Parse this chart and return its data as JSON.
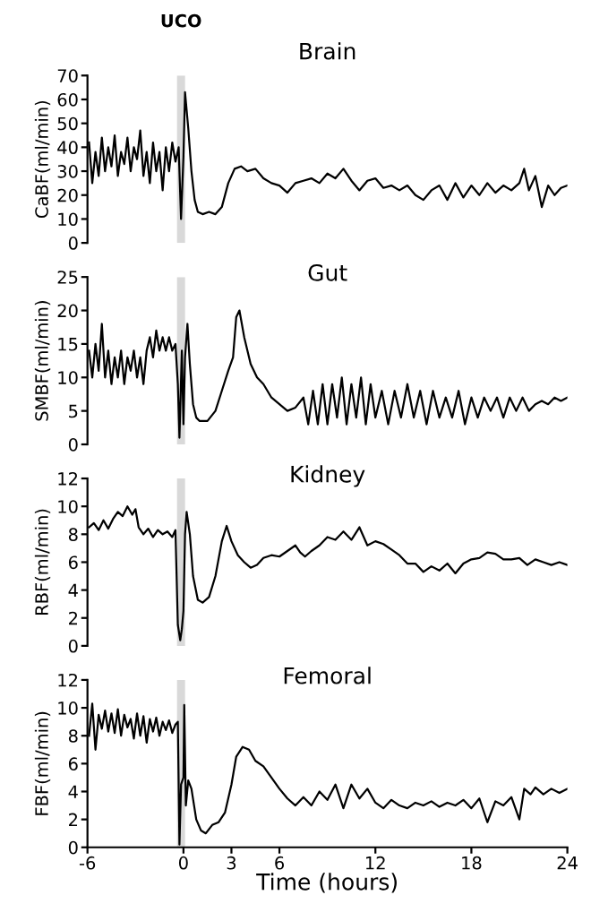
{
  "chart_data": [
    {
      "type": "line",
      "title": "Brain",
      "ylabel": "CaBF(ml/min)",
      "xlim": [
        -6,
        24
      ],
      "ylim": [
        0,
        70
      ],
      "yticks": [
        0,
        10,
        20,
        30,
        40,
        50,
        60,
        70
      ],
      "grid": false,
      "legend": false,
      "tick_labels": "y",
      "line_style": "solid",
      "bands": [
        {
          "axis": "x",
          "from": -0.4,
          "to": 0.1,
          "label": "UCO",
          "color": "#d9d9d9"
        }
      ],
      "series": [
        {
          "color": "#000000",
          "x": [
            -5.9,
            -5.7,
            -5.5,
            -5.3,
            -5.1,
            -4.9,
            -4.7,
            -4.5,
            -4.3,
            -4.1,
            -3.9,
            -3.7,
            -3.5,
            -3.3,
            -3.1,
            -2.9,
            -2.7,
            -2.5,
            -2.3,
            -2.1,
            -1.9,
            -1.7,
            -1.5,
            -1.3,
            -1.1,
            -0.9,
            -0.7,
            -0.5,
            -0.3,
            -0.15,
            0.0,
            0.1,
            0.3,
            0.5,
            0.7,
            0.9,
            1.2,
            1.6,
            2.0,
            2.4,
            2.8,
            3.2,
            3.6,
            4.0,
            4.5,
            5.0,
            5.5,
            6.0,
            6.5,
            7.0,
            7.5,
            8.0,
            8.5,
            9.0,
            9.5,
            10.0,
            10.5,
            11.0,
            11.5,
            12.0,
            12.5,
            13.0,
            13.5,
            14.0,
            14.5,
            15.0,
            15.5,
            16.0,
            16.5,
            17.0,
            17.5,
            18.0,
            18.5,
            19.0,
            19.5,
            20.0,
            20.5,
            21.0,
            21.3,
            21.6,
            22.0,
            22.4,
            22.8,
            23.2,
            23.6,
            24.0
          ],
          "values": [
            42,
            25,
            38,
            28,
            44,
            30,
            40,
            32,
            45,
            28,
            38,
            33,
            44,
            30,
            40,
            35,
            47,
            28,
            38,
            25,
            42,
            30,
            38,
            22,
            40,
            30,
            42,
            34,
            40,
            10,
            36,
            63,
            48,
            30,
            18,
            13,
            12,
            13,
            12,
            15,
            25,
            31,
            32,
            30,
            31,
            27,
            25,
            24,
            21,
            25,
            26,
            27,
            25,
            29,
            27,
            31,
            26,
            22,
            26,
            27,
            23,
            24,
            22,
            24,
            20,
            18,
            22,
            24,
            18,
            25,
            19,
            24,
            20,
            25,
            21,
            24,
            22,
            25,
            31,
            22,
            28,
            15,
            24,
            20,
            23,
            24
          ]
        }
      ]
    },
    {
      "type": "line",
      "title": "Gut",
      "ylabel": "SMBF(ml/min)",
      "xlim": [
        -6,
        24
      ],
      "ylim": [
        0,
        25
      ],
      "yticks": [
        0,
        5,
        10,
        15,
        20,
        25
      ],
      "grid": false,
      "legend": false,
      "tick_labels": "y",
      "line_style": "solid",
      "bands": [
        {
          "axis": "x",
          "from": -0.4,
          "to": 0.1,
          "color": "#d9d9d9"
        }
      ],
      "series": [
        {
          "color": "#000000",
          "x": [
            -5.9,
            -5.7,
            -5.5,
            -5.3,
            -5.1,
            -4.9,
            -4.7,
            -4.5,
            -4.3,
            -4.1,
            -3.9,
            -3.7,
            -3.5,
            -3.3,
            -3.1,
            -2.9,
            -2.7,
            -2.5,
            -2.3,
            -2.1,
            -1.9,
            -1.7,
            -1.5,
            -1.3,
            -1.1,
            -0.9,
            -0.7,
            -0.5,
            -0.35,
            -0.25,
            -0.1,
            0.0,
            0.1,
            0.25,
            0.4,
            0.6,
            0.8,
            1.0,
            1.5,
            2.0,
            2.4,
            2.8,
            3.1,
            3.3,
            3.5,
            3.8,
            4.2,
            4.6,
            5.0,
            5.5,
            6.0,
            6.5,
            7.0,
            7.5,
            7.8,
            8.1,
            8.4,
            8.7,
            9.0,
            9.3,
            9.6,
            9.9,
            10.2,
            10.5,
            10.8,
            11.1,
            11.4,
            11.7,
            12.0,
            12.4,
            12.8,
            13.2,
            13.6,
            14.0,
            14.4,
            14.8,
            15.2,
            15.6,
            16.0,
            16.4,
            16.8,
            17.2,
            17.6,
            18.0,
            18.4,
            18.8,
            19.2,
            19.6,
            20.0,
            20.4,
            20.8,
            21.2,
            21.6,
            22.0,
            22.4,
            22.8,
            23.2,
            23.6,
            24.0
          ],
          "values": [
            14,
            10,
            15,
            11,
            18,
            10,
            14,
            9,
            13,
            10,
            14,
            9,
            13,
            11,
            14,
            10,
            13,
            9,
            14,
            16,
            13,
            17,
            14,
            16,
            14,
            16,
            14,
            15,
            9,
            1,
            14,
            3,
            13,
            18,
            12,
            6,
            4,
            3.5,
            3.5,
            5,
            8,
            11,
            13,
            19,
            20,
            16,
            12,
            10,
            9,
            7,
            6,
            5,
            5.5,
            7,
            3,
            8,
            3,
            9,
            3,
            9,
            4,
            10,
            3,
            9,
            4,
            10,
            3,
            9,
            4,
            8,
            3,
            8,
            4,
            9,
            4,
            8,
            3,
            8,
            4,
            7,
            4,
            8,
            3,
            7,
            4,
            7,
            5,
            7,
            4,
            7,
            5,
            7,
            5,
            6,
            6.5,
            6,
            7,
            6.5,
            7
          ]
        }
      ]
    },
    {
      "type": "line",
      "title": "Kidney",
      "ylabel": "RBF(ml/min)",
      "xlim": [
        -6,
        24
      ],
      "ylim": [
        0,
        12
      ],
      "yticks": [
        0,
        2,
        4,
        6,
        8,
        10,
        12
      ],
      "grid": false,
      "legend": false,
      "tick_labels": "y",
      "line_style": "solid",
      "bands": [
        {
          "axis": "x",
          "from": -0.4,
          "to": 0.1,
          "color": "#d9d9d9"
        }
      ],
      "series": [
        {
          "color": "#000000",
          "x": [
            -5.9,
            -5.6,
            -5.3,
            -5.0,
            -4.7,
            -4.4,
            -4.1,
            -3.8,
            -3.5,
            -3.2,
            -3.0,
            -2.8,
            -2.5,
            -2.2,
            -1.9,
            -1.6,
            -1.3,
            -1.0,
            -0.7,
            -0.5,
            -0.35,
            -0.2,
            -0.1,
            0.0,
            0.1,
            0.2,
            0.4,
            0.6,
            0.9,
            1.2,
            1.6,
            2.0,
            2.4,
            2.7,
            3.0,
            3.4,
            3.8,
            4.2,
            4.6,
            5.0,
            5.5,
            6.0,
            6.5,
            7.0,
            7.3,
            7.6,
            8.0,
            8.5,
            9.0,
            9.5,
            10.0,
            10.5,
            11.0,
            11.5,
            12.0,
            12.5,
            13.0,
            13.5,
            14.0,
            14.5,
            15.0,
            15.5,
            16.0,
            16.5,
            17.0,
            17.5,
            18.0,
            18.5,
            19.0,
            19.5,
            20.0,
            20.5,
            21.0,
            21.5,
            22.0,
            22.5,
            23.0,
            23.5,
            24.0
          ],
          "values": [
            8.5,
            8.8,
            8.3,
            9.0,
            8.4,
            9.1,
            9.6,
            9.3,
            10.0,
            9.4,
            9.8,
            8.5,
            8.0,
            8.4,
            7.8,
            8.3,
            8.0,
            8.2,
            7.8,
            8.3,
            1.5,
            0.4,
            1.2,
            2.5,
            8,
            9.6,
            8,
            5,
            3.3,
            3.1,
            3.5,
            5,
            7.5,
            8.6,
            7.5,
            6.5,
            6,
            5.6,
            5.8,
            6.3,
            6.5,
            6.4,
            6.8,
            7.2,
            6.7,
            6.4,
            6.8,
            7.2,
            7.8,
            7.6,
            8.2,
            7.6,
            8.5,
            7.2,
            7.5,
            7.3,
            6.9,
            6.5,
            5.9,
            5.9,
            5.3,
            5.7,
            5.4,
            5.9,
            5.2,
            5.9,
            6.2,
            6.3,
            6.7,
            6.6,
            6.2,
            6.2,
            6.3,
            5.8,
            6.2,
            6.0,
            5.8,
            6.0,
            5.8
          ]
        }
      ]
    },
    {
      "type": "line",
      "title": "Femoral",
      "ylabel": "FBF(ml/min)",
      "xlabel": "Time (hours)",
      "xlim": [
        -6,
        24
      ],
      "xticks": [
        -6,
        0,
        3,
        6,
        12,
        18,
        24
      ],
      "ylim": [
        0,
        12
      ],
      "yticks": [
        0,
        2,
        4,
        6,
        8,
        10,
        12
      ],
      "grid": false,
      "legend": false,
      "line_style": "solid",
      "bands": [
        {
          "axis": "x",
          "from": -0.4,
          "to": 0.1,
          "color": "#d9d9d9"
        }
      ],
      "series": [
        {
          "color": "#000000",
          "x": [
            -5.9,
            -5.7,
            -5.5,
            -5.3,
            -5.1,
            -4.9,
            -4.7,
            -4.5,
            -4.3,
            -4.1,
            -3.9,
            -3.7,
            -3.5,
            -3.3,
            -3.1,
            -2.9,
            -2.7,
            -2.5,
            -2.3,
            -2.1,
            -1.9,
            -1.7,
            -1.5,
            -1.3,
            -1.1,
            -0.9,
            -0.7,
            -0.5,
            -0.35,
            -0.25,
            -0.15,
            0.0,
            0.05,
            0.15,
            0.3,
            0.5,
            0.8,
            1.1,
            1.4,
            1.8,
            2.2,
            2.6,
            3.0,
            3.3,
            3.7,
            4.1,
            4.5,
            5.0,
            5.5,
            6.0,
            6.5,
            7.0,
            7.5,
            8.0,
            8.5,
            9.0,
            9.5,
            10.0,
            10.5,
            11.0,
            11.5,
            12.0,
            12.5,
            13.0,
            13.5,
            14.0,
            14.5,
            15.0,
            15.5,
            16.0,
            16.5,
            17.0,
            17.5,
            18.0,
            18.5,
            19.0,
            19.5,
            20.0,
            20.5,
            21.0,
            21.3,
            21.7,
            22.0,
            22.5,
            23.0,
            23.5,
            24.0
          ],
          "values": [
            8,
            10.3,
            7,
            9.5,
            8.5,
            9.8,
            8.3,
            9.6,
            8.2,
            9.9,
            8.0,
            9.5,
            8.6,
            9.2,
            7.8,
            9.6,
            8.0,
            9.4,
            7.5,
            9.2,
            8.3,
            9.3,
            8.0,
            9.0,
            8.4,
            9.1,
            8.2,
            8.8,
            9.0,
            0.2,
            4.5,
            5,
            10.2,
            3,
            4.8,
            4.2,
            2,
            1.2,
            1.0,
            1.6,
            1.8,
            2.5,
            4.5,
            6.5,
            7.2,
            7.0,
            6.2,
            5.8,
            5.0,
            4.2,
            3.5,
            3.0,
            3.6,
            3.0,
            4.0,
            3.4,
            4.5,
            2.8,
            4.5,
            3.5,
            4.2,
            3.2,
            2.8,
            3.4,
            3.0,
            2.8,
            3.2,
            3.0,
            3.3,
            2.9,
            3.2,
            3.0,
            3.4,
            2.8,
            3.5,
            1.8,
            3.3,
            3.0,
            3.6,
            2.0,
            4.2,
            3.8,
            4.3,
            3.8,
            4.2,
            3.9,
            4.2
          ]
        }
      ]
    }
  ]
}
